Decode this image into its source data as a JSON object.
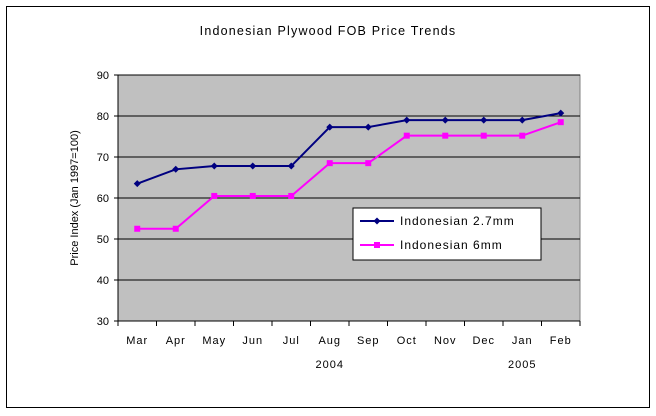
{
  "chart_data": {
    "type": "line",
    "title": "Indonesian Plywood FOB Price Trends",
    "ylabel": "Price Index (Jan 1997=100)",
    "xlabel": "",
    "categories": [
      "Mar",
      "Apr",
      "May",
      "Jun",
      "Jul",
      "Aug",
      "Sep",
      "Oct",
      "Nov",
      "Dec",
      "Jan",
      "Feb"
    ],
    "year_labels": [
      {
        "label": "2004",
        "category": "Aug"
      },
      {
        "label": "2005",
        "category": "Jan"
      }
    ],
    "ylim": [
      30,
      90
    ],
    "yticks": [
      30,
      40,
      50,
      60,
      70,
      80,
      90
    ],
    "grid": true,
    "legend_position": "center-right",
    "colors": {
      "plot_background": "#c0c0c0",
      "frame": "#000000"
    },
    "series": [
      {
        "name": "Indonesian 2.7mm",
        "color": "#000080",
        "marker": "diamond",
        "values": [
          63.5,
          67,
          67.8,
          67.8,
          67.8,
          77.3,
          77.3,
          79,
          79,
          79,
          79,
          80.7
        ]
      },
      {
        "name": "Indonesian 6mm",
        "color": "#ff00ff",
        "marker": "square",
        "values": [
          52.5,
          52.5,
          60.5,
          60.5,
          60.5,
          68.5,
          68.5,
          75.2,
          75.2,
          75.2,
          75.2,
          78.5
        ]
      }
    ]
  }
}
